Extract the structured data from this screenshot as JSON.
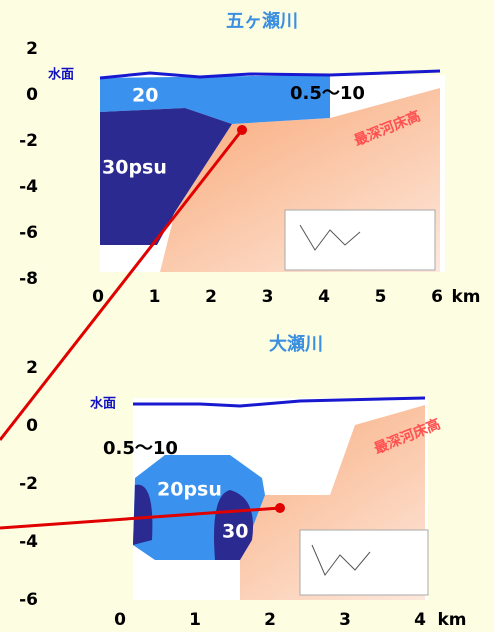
{
  "panels": [
    {
      "title": "五ヶ瀬川",
      "yticks": [
        2,
        0,
        -2,
        -4,
        -6,
        -8
      ],
      "xticks": [
        0,
        1,
        2,
        3,
        4,
        5,
        6
      ],
      "unit": "km",
      "labels": {
        "surface": "水面",
        "salinity_a": "20",
        "salinity_b": "0.5〜10",
        "salinity_c": "30psu",
        "bed": "最深河床高"
      }
    },
    {
      "title": "大瀬川",
      "yticks": [
        2,
        0,
        -2,
        -4,
        -6
      ],
      "xticks": [
        0,
        1,
        2,
        3,
        4
      ],
      "unit": "km",
      "labels": {
        "surface": "水面",
        "salinity_a": "20psu",
        "salinity_b": "0.5〜10",
        "salinity_c": "30",
        "bed": "最深河床高"
      }
    }
  ]
}
